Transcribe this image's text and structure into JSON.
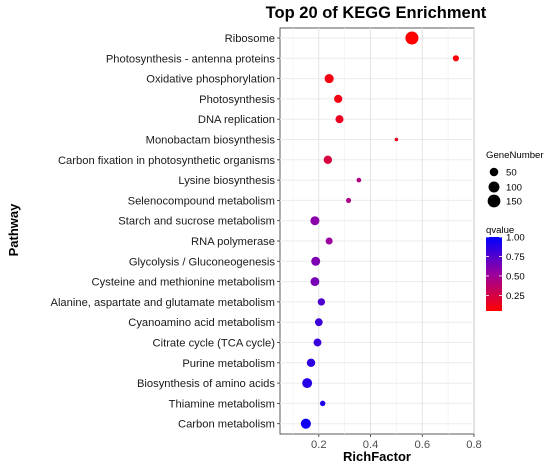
{
  "chart_data": {
    "type": "scatter",
    "title": "Top 20 of KEGG Enrichment",
    "xlabel": "RichFactor",
    "ylabel": "Pathway",
    "xlim": [
      0.05,
      0.8
    ],
    "xticks": [
      0.2,
      0.4,
      0.6,
      0.8
    ],
    "xtick_labels": [
      "0.2",
      "0.4",
      "0.6",
      "0.8"
    ],
    "grid": true,
    "legend_position": "right",
    "size_legend": {
      "title": "GeneNumber",
      "values": [
        50,
        100,
        150
      ],
      "labels": [
        "50",
        "100",
        "150"
      ]
    },
    "color_legend": {
      "title": "qvalue",
      "range": [
        0.05,
        1.0
      ],
      "ticks": [
        1.0,
        0.75,
        0.5,
        0.25
      ],
      "tick_labels": [
        "1.00",
        "0.75",
        "0.50",
        "0.25"
      ],
      "low_color": "#ff0000",
      "high_color": "#0000ff"
    },
    "points": [
      {
        "pathway": "Ribosome",
        "rich_factor": 0.56,
        "gene_number": 160,
        "qvalue": 0.0
      },
      {
        "pathway": "Photosynthesis - antenna proteins",
        "rich_factor": 0.73,
        "gene_number": 19,
        "qvalue": 0.02
      },
      {
        "pathway": "Oxidative phosphorylation",
        "rich_factor": 0.24,
        "gene_number": 60,
        "qvalue": 0.05
      },
      {
        "pathway": "Photosynthesis",
        "rich_factor": 0.275,
        "gene_number": 45,
        "qvalue": 0.06
      },
      {
        "pathway": "DNA replication",
        "rich_factor": 0.28,
        "gene_number": 42,
        "qvalue": 0.1
      },
      {
        "pathway": "Monobactam biosynthesis",
        "rich_factor": 0.5,
        "gene_number": 8,
        "qvalue": 0.12
      },
      {
        "pathway": "Carbon fixation in photosynthetic organisms",
        "rich_factor": 0.235,
        "gene_number": 48,
        "qvalue": 0.2
      },
      {
        "pathway": "Lysine biosynthesis",
        "rich_factor": 0.355,
        "gene_number": 10,
        "qvalue": 0.4
      },
      {
        "pathway": "Selenocompound metabolism",
        "rich_factor": 0.315,
        "gene_number": 12,
        "qvalue": 0.42
      },
      {
        "pathway": "Starch and sucrose metabolism",
        "rich_factor": 0.185,
        "gene_number": 58,
        "qvalue": 0.55
      },
      {
        "pathway": "RNA polymerase",
        "rich_factor": 0.24,
        "gene_number": 28,
        "qvalue": 0.5
      },
      {
        "pathway": "Glycolysis / Gluconeogenesis",
        "rich_factor": 0.188,
        "gene_number": 58,
        "qvalue": 0.6
      },
      {
        "pathway": "Cysteine and methionine metabolism",
        "rich_factor": 0.185,
        "gene_number": 55,
        "qvalue": 0.62
      },
      {
        "pathway": "Alanine, aspartate and glutamate metabolism",
        "rich_factor": 0.21,
        "gene_number": 32,
        "qvalue": 0.75
      },
      {
        "pathway": "Cyanoamino acid metabolism",
        "rich_factor": 0.2,
        "gene_number": 38,
        "qvalue": 0.8
      },
      {
        "pathway": "Citrate cycle (TCA cycle)",
        "rich_factor": 0.195,
        "gene_number": 40,
        "qvalue": 0.82
      },
      {
        "pathway": "Purine metabolism",
        "rich_factor": 0.17,
        "gene_number": 48,
        "qvalue": 0.85
      },
      {
        "pathway": "Biosynthesis of amino acids",
        "rich_factor": 0.155,
        "gene_number": 75,
        "qvalue": 0.88
      },
      {
        "pathway": "Thiamine metabolism",
        "rich_factor": 0.215,
        "gene_number": 14,
        "qvalue": 0.9
      },
      {
        "pathway": "Carbon metabolism",
        "rich_factor": 0.15,
        "gene_number": 80,
        "qvalue": 0.95
      }
    ]
  }
}
